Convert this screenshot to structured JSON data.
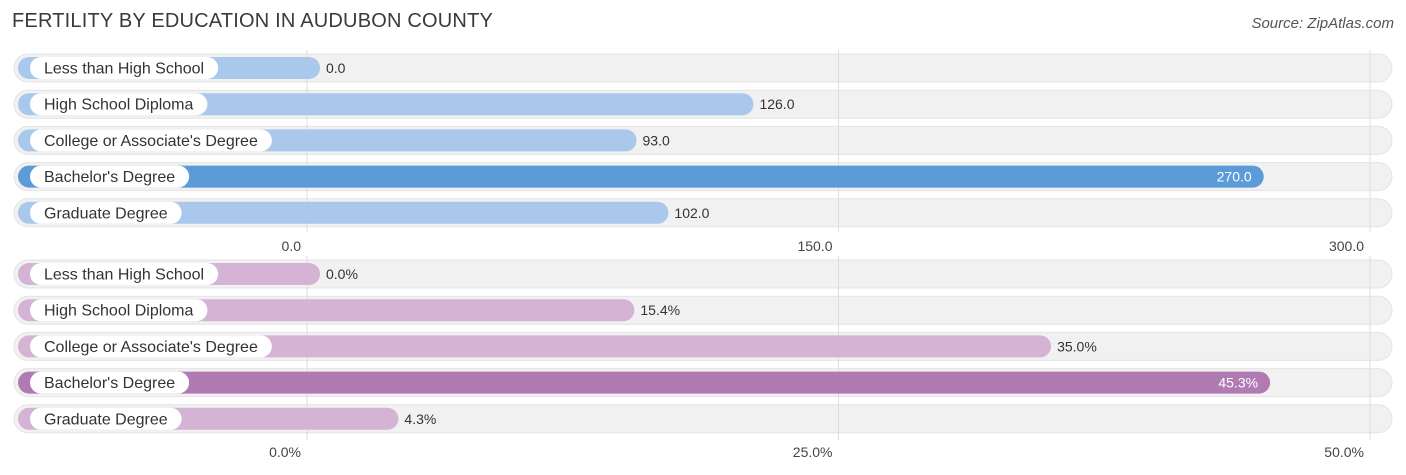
{
  "title": "FERTILITY BY EDUCATION IN AUDUBON COUNTY",
  "source": "Source: ZipAtlas.com",
  "colors": {
    "top_light": "#a9c8ec",
    "top_strong": "#5b9bd8",
    "bottom_light": "#d5b3d4",
    "bottom_strong": "#b07ab3",
    "track": "#f1f1f1",
    "grid": "#dddddd"
  },
  "chart_data": [
    {
      "type": "bar",
      "orientation": "horizontal",
      "categories": [
        "Less than High School",
        "High School Diploma",
        "College or Associate's Degree",
        "Bachelor's Degree",
        "Graduate Degree"
      ],
      "values": [
        0.0,
        126.0,
        93.0,
        270.0,
        102.0
      ],
      "value_labels": [
        "0.0",
        "126.0",
        "93.0",
        "270.0",
        "102.0"
      ],
      "xlim": [
        0,
        300
      ],
      "ticks": [
        0,
        150,
        300
      ],
      "tick_labels": [
        "0.0",
        "150.0",
        "300.0"
      ],
      "grid": true
    },
    {
      "type": "bar",
      "orientation": "horizontal",
      "categories": [
        "Less than High School",
        "High School Diploma",
        "College or Associate's Degree",
        "Bachelor's Degree",
        "Graduate Degree"
      ],
      "values": [
        0.0,
        15.4,
        35.0,
        45.3,
        4.3
      ],
      "value_labels": [
        "0.0%",
        "15.4%",
        "35.0%",
        "45.3%",
        "4.3%"
      ],
      "xlim": [
        0,
        50
      ],
      "ticks": [
        0,
        25,
        50
      ],
      "tick_labels": [
        "0.0%",
        "25.0%",
        "50.0%"
      ],
      "grid": true
    }
  ]
}
